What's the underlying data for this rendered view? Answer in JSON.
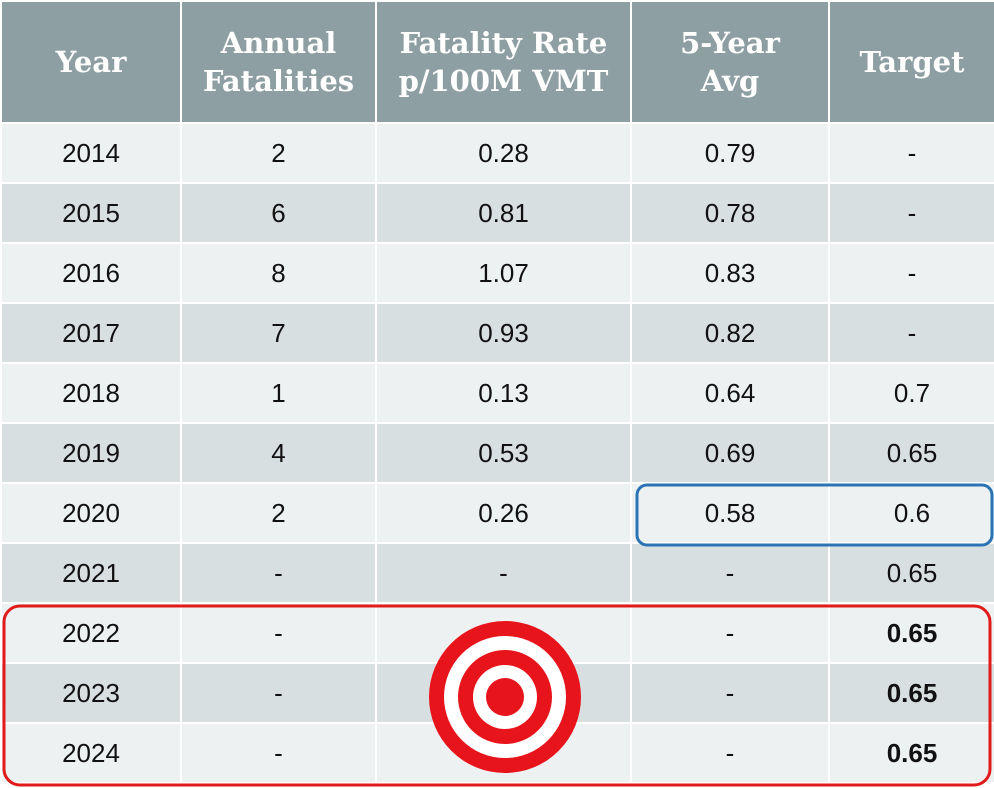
{
  "table": {
    "header": [
      [
        "Year"
      ],
      [
        "Annual",
        "Fatalities"
      ],
      [
        "Fatality Rate",
        "p/100M VMT"
      ],
      [
        "5-Year",
        "Avg"
      ],
      [
        "Target"
      ]
    ],
    "rows": [
      [
        "2014",
        "2",
        "0.28",
        "0.79",
        "-"
      ],
      [
        "2015",
        "6",
        "0.81",
        "0.78",
        "-"
      ],
      [
        "2016",
        "8",
        "1.07",
        "0.83",
        "-"
      ],
      [
        "2017",
        "7",
        "0.93",
        "0.82",
        "-"
      ],
      [
        "2018",
        "1",
        "0.13",
        "0.64",
        "0.7"
      ],
      [
        "2019",
        "4",
        "0.53",
        "0.69",
        "0.65"
      ],
      [
        "2020",
        "2",
        "0.26",
        "0.58",
        "0.6"
      ],
      [
        "2021",
        "-",
        "-",
        "-",
        "0.65"
      ],
      [
        "2022",
        "-",
        null,
        "-",
        "0.65"
      ],
      [
        "2023",
        "-",
        null,
        "-",
        "0.65"
      ],
      [
        "2024",
        "-",
        null,
        "-",
        "0.65"
      ]
    ]
  }
}
